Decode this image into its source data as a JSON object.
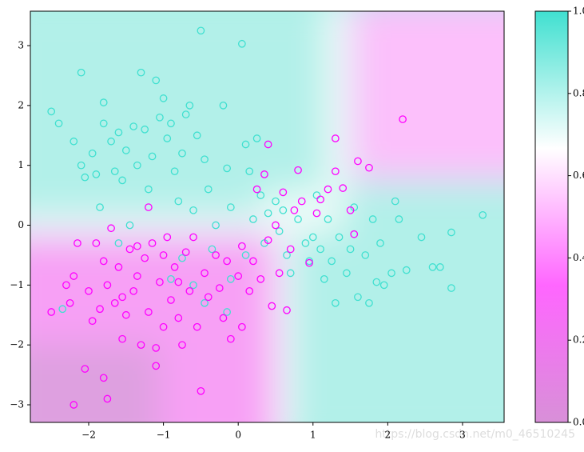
{
  "chart_data": {
    "type": "scatter",
    "xlim": [
      -2.78,
      3.556
    ],
    "ylim": [
      -3.294,
      3.575
    ],
    "xticks": [
      {
        "value": -2,
        "label": "−2"
      },
      {
        "value": -1,
        "label": "−1"
      },
      0,
      1,
      2,
      3
    ],
    "yticks": [
      {
        "value": -3,
        "label": "−3"
      },
      {
        "value": -2,
        "label": "−2"
      },
      {
        "value": -1,
        "label": "−1"
      },
      0,
      1,
      2,
      3
    ],
    "series": [
      {
        "color": "#40e0d0",
        "x": [
          -2.5,
          -2.4,
          -2.2,
          -2.1,
          -2.1,
          -2.05,
          -1.95,
          -1.9,
          -1.85,
          -1.8,
          -1.8,
          -1.7,
          -1.65,
          -1.6,
          -1.55,
          -1.5,
          -1.45,
          -1.4,
          -1.35,
          -1.3,
          -1.25,
          -1.2,
          -1.15,
          -1.1,
          -1.05,
          -1.0,
          -0.95,
          -0.9,
          -0.85,
          -0.8,
          -0.75,
          -0.7,
          -0.65,
          -0.6,
          -0.55,
          -0.5,
          -0.45,
          -0.4,
          -0.35,
          -0.3,
          -0.2,
          -0.15,
          -0.1,
          0.05,
          0.1,
          0.15,
          0.2,
          0.25,
          0.3,
          0.35,
          0.4,
          0.5,
          0.55,
          0.6,
          0.65,
          0.7,
          0.8,
          0.9,
          0.95,
          1.0,
          1.05,
          1.1,
          1.15,
          1.2,
          1.25,
          1.3,
          1.35,
          1.45,
          1.5,
          1.55,
          1.6,
          1.7,
          1.75,
          1.8,
          1.85,
          1.9,
          1.95,
          2.05,
          2.1,
          2.15,
          2.25,
          2.45,
          2.6,
          2.7,
          2.85,
          2.85,
          3.27,
          -2.35,
          -1.6,
          -0.75,
          -0.6,
          -0.45,
          -0.1,
          0.1,
          -0.15,
          -0.9
        ],
        "y": [
          1.9,
          1.7,
          1.4,
          2.55,
          1.0,
          0.8,
          1.2,
          0.85,
          0.3,
          2.05,
          1.7,
          1.4,
          0.9,
          1.55,
          0.75,
          1.25,
          0.0,
          1.65,
          1.0,
          2.55,
          1.6,
          0.6,
          1.15,
          2.42,
          1.8,
          2.12,
          1.45,
          1.7,
          0.9,
          0.4,
          1.2,
          1.85,
          2.0,
          0.25,
          1.5,
          3.25,
          1.1,
          0.6,
          -0.4,
          0.0,
          2.0,
          0.95,
          0.3,
          3.03,
          1.35,
          0.9,
          0.1,
          1.45,
          0.5,
          -0.3,
          0.2,
          0.4,
          -0.1,
          0.25,
          -0.5,
          -0.8,
          0.1,
          -0.3,
          -0.6,
          -0.2,
          0.5,
          -0.4,
          -0.9,
          0.1,
          -0.6,
          -1.3,
          -0.2,
          -0.8,
          -0.4,
          0.3,
          -1.2,
          -0.5,
          -1.3,
          0.1,
          -0.95,
          -0.3,
          -1.0,
          -0.8,
          0.4,
          0.1,
          -0.75,
          -0.2,
          -0.7,
          -0.7,
          -1.05,
          -0.12,
          0.17,
          -1.4,
          -0.3,
          -0.55,
          -1.0,
          -1.3,
          -0.9,
          -0.5,
          -1.45,
          -0.9
        ]
      },
      {
        "color": "#ff00ff",
        "x": [
          -2.5,
          -2.3,
          -2.25,
          -2.2,
          -2.15,
          -2.05,
          -2.0,
          -1.95,
          -1.9,
          -1.85,
          -1.8,
          -1.75,
          -1.75,
          -1.7,
          -1.65,
          -1.6,
          -1.55,
          -1.5,
          -1.45,
          -1.4,
          -1.35,
          -1.3,
          -1.25,
          -1.2,
          -1.15,
          -1.1,
          -1.1,
          -1.05,
          -1.0,
          -0.95,
          -0.9,
          -0.85,
          -0.8,
          -0.75,
          -0.7,
          -0.65,
          -0.6,
          -0.55,
          -0.5,
          -0.45,
          -0.4,
          -0.3,
          -0.25,
          -0.2,
          -0.15,
          -0.1,
          0.0,
          0.05,
          0.15,
          0.2,
          0.25,
          0.3,
          0.35,
          0.4,
          0.45,
          0.5,
          0.55,
          0.6,
          0.65,
          0.7,
          0.75,
          0.8,
          0.85,
          0.95,
          1.05,
          1.1,
          1.2,
          1.3,
          1.3,
          1.4,
          1.5,
          1.55,
          1.6,
          1.75,
          2.2,
          -2.2,
          -1.8,
          0.05,
          0.4,
          -1.2,
          -1.35,
          -1.0,
          -0.8,
          -1.55
        ],
        "y": [
          -1.45,
          -1.0,
          -1.3,
          -0.85,
          -0.3,
          -2.4,
          -1.1,
          -1.6,
          -0.3,
          -1.4,
          -0.6,
          -2.9,
          -1.0,
          -0.05,
          -1.3,
          -0.7,
          -1.9,
          -1.5,
          -0.4,
          -1.1,
          -0.85,
          -2.0,
          -0.55,
          -1.45,
          -0.3,
          -2.05,
          -2.35,
          -0.95,
          -1.7,
          -0.2,
          -1.25,
          -0.7,
          -1.55,
          -2.0,
          -0.45,
          -1.1,
          -0.2,
          -1.7,
          -2.77,
          -0.8,
          -1.2,
          -0.5,
          -1.05,
          -1.55,
          -0.6,
          -1.9,
          -0.85,
          -0.35,
          -1.1,
          -0.6,
          0.6,
          -0.9,
          0.85,
          -0.25,
          -1.35,
          0.0,
          -0.8,
          0.55,
          -1.42,
          -0.4,
          0.25,
          0.92,
          0.4,
          -0.63,
          0.2,
          0.43,
          0.6,
          1.45,
          0.9,
          0.62,
          0.25,
          -0.15,
          1.07,
          0.96,
          1.77,
          -3.0,
          -2.55,
          -1.7,
          1.35,
          0.3,
          -0.35,
          -0.5,
          -0.95,
          -1.2
        ]
      }
    ],
    "colorbar": {
      "lim": [
        0,
        1
      ],
      "colors": [
        "#d890d8",
        "#ff66ff",
        "#ffffff",
        "#40e0d0"
      ],
      "ticks": [
        {
          "value": 0,
          "label": "0.0"
        },
        {
          "value": 0.2,
          "label": "0.2"
        },
        {
          "value": 0.4,
          "label": "0.4"
        },
        {
          "value": 0.6,
          "label": "0.6"
        },
        {
          "value": 0.8,
          "label": "0.8"
        },
        {
          "value": 1,
          "label": "1.0"
        }
      ]
    },
    "watermark": "https://blog.csdn.net/m0_46510245"
  }
}
